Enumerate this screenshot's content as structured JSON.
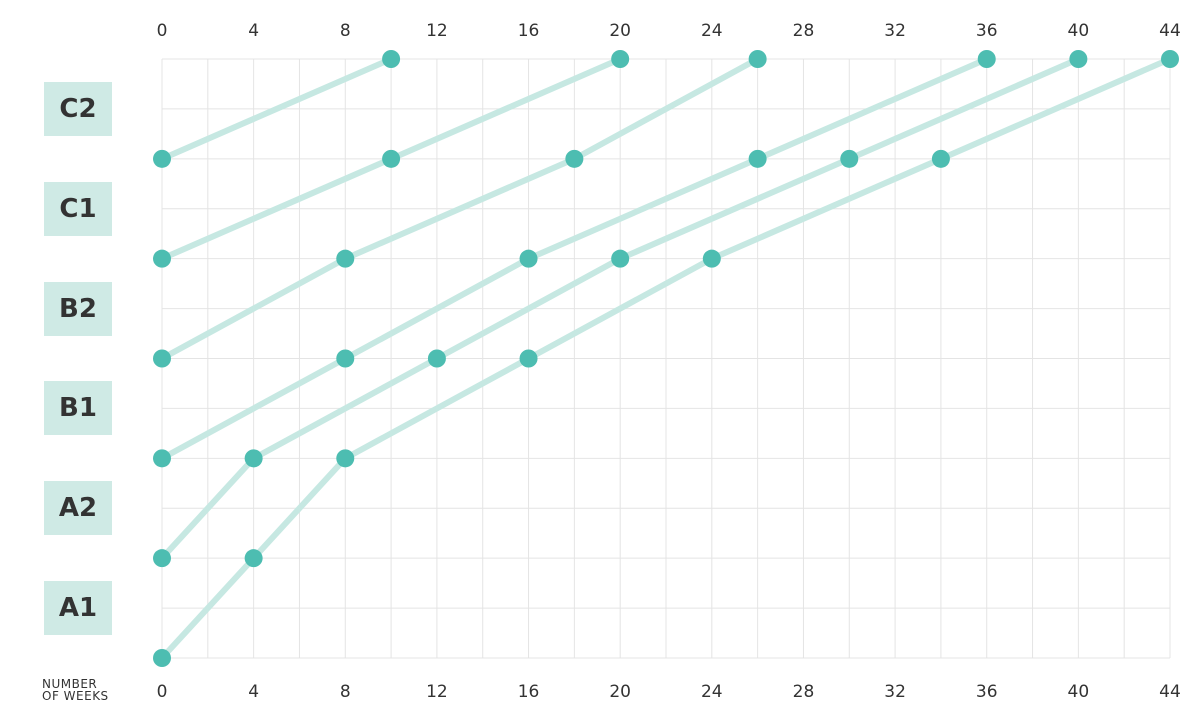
{
  "chart_data": {
    "type": "line",
    "levels": [
      "A1",
      "A2",
      "B1",
      "B2",
      "C1",
      "C2"
    ],
    "x_ticks": [
      0,
      4,
      8,
      12,
      16,
      20,
      24,
      28,
      32,
      36,
      40,
      44
    ],
    "xlim": [
      0,
      44
    ],
    "xlabel": "NUMBER OF WEEKS",
    "ylim": [
      0,
      6
    ],
    "grid": true,
    "colors": {
      "line": "#c6e8e2",
      "point": "#4dbdb1",
      "grid": "#e4e4e4",
      "level_box": "#cfeae5",
      "text": "#333333"
    },
    "series": [
      {
        "points": [
          {
            "x": 0,
            "y": 5
          },
          {
            "x": 10,
            "y": 6
          }
        ]
      },
      {
        "points": [
          {
            "x": 0,
            "y": 4
          },
          {
            "x": 10,
            "y": 5
          },
          {
            "x": 20,
            "y": 6
          }
        ]
      },
      {
        "points": [
          {
            "x": 0,
            "y": 3
          },
          {
            "x": 8,
            "y": 4
          },
          {
            "x": 18,
            "y": 5
          },
          {
            "x": 26,
            "y": 6
          }
        ]
      },
      {
        "points": [
          {
            "x": 0,
            "y": 2
          },
          {
            "x": 8,
            "y": 3
          },
          {
            "x": 16,
            "y": 4
          },
          {
            "x": 26,
            "y": 5
          },
          {
            "x": 36,
            "y": 6
          }
        ]
      },
      {
        "points": [
          {
            "x": 0,
            "y": 1
          },
          {
            "x": 4,
            "y": 2
          },
          {
            "x": 12,
            "y": 3
          },
          {
            "x": 20,
            "y": 4
          },
          {
            "x": 30,
            "y": 5
          },
          {
            "x": 40,
            "y": 6
          }
        ]
      },
      {
        "points": [
          {
            "x": 0,
            "y": 0
          },
          {
            "x": 4,
            "y": 1
          },
          {
            "x": 8,
            "y": 2
          },
          {
            "x": 16,
            "y": 3
          },
          {
            "x": 24,
            "y": 4
          },
          {
            "x": 34,
            "y": 5
          },
          {
            "x": 44,
            "y": 6
          }
        ]
      }
    ]
  },
  "labels": {
    "weeks_line1": "NUMBER",
    "weeks_line2": "OF WEEKS"
  }
}
